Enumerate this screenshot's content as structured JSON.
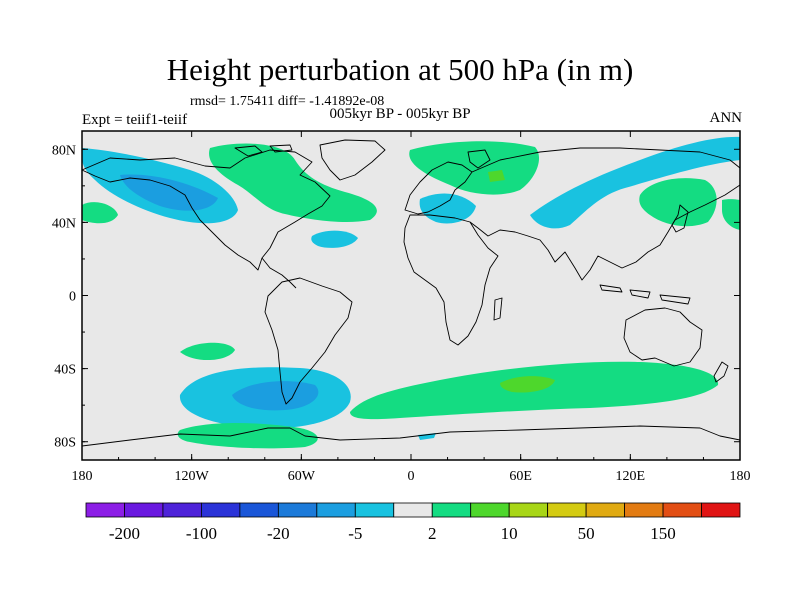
{
  "title": "Height perturbation at 500 hPa (in m)",
  "stats": "rmsd= 1.75411 diff= -1.41892e-08",
  "period": "005kyr BP - 005kyr BP",
  "expt": "Expt = teiif1-teiif",
  "season": "ANN",
  "lat_labels": [
    "80N",
    "40N",
    "0",
    "40S",
    "80S"
  ],
  "lon_labels": [
    "180",
    "120W",
    "60W",
    "0",
    "60E",
    "120E",
    "180"
  ],
  "colorbar": {
    "colors": [
      "#8c1ee6",
      "#6a19e0",
      "#4e23d9",
      "#2b33d8",
      "#1a56d8",
      "#1c7ad9",
      "#1b9ee0",
      "#19c2e0",
      "#e8e8e8",
      "#14dc82",
      "#4ed72c",
      "#a8d617",
      "#d4cb12",
      "#e0aa12",
      "#e27b12",
      "#e24e14",
      "#e01414"
    ],
    "labels": [
      "-200",
      "-100",
      "-20",
      "-5",
      "2",
      "10",
      "50",
      "150"
    ]
  },
  "colors": {
    "background_field": "#e8e8e8",
    "neg_light": "#19c2e0",
    "neg_mid": "#1b9ee0",
    "pos_light": "#14dc82",
    "pos_mid": "#4ed72c"
  }
}
